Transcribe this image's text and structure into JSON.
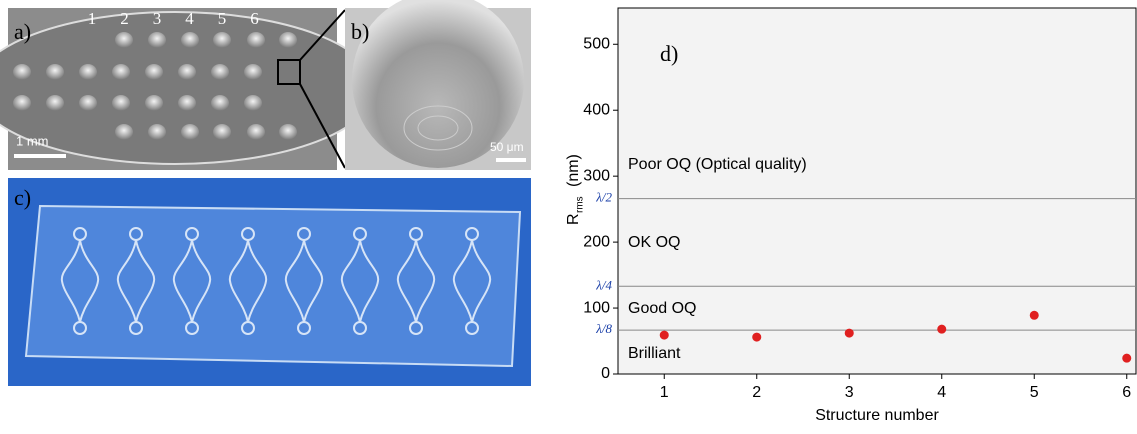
{
  "panels": {
    "a": {
      "label": "a)",
      "columns": [
        "1",
        "2",
        "3",
        "4",
        "5",
        "6"
      ],
      "scale_bar": "1 mm"
    },
    "b": {
      "label": "b)",
      "scale_bar": "50 μm"
    },
    "c": {
      "label": "c)"
    }
  },
  "chart_data": {
    "type": "scatter",
    "title": "d)",
    "xlabel": "Structure number",
    "ylabel": "R",
    "ylabel_sub": "rms",
    "ylabel_unit": "(nm)",
    "x": [
      1,
      2,
      3,
      4,
      5,
      6
    ],
    "values": [
      59,
      56,
      62,
      68,
      89,
      24
    ],
    "color": "#e02020",
    "xlim": [
      0.5,
      6.1
    ],
    "xticks": [
      1,
      2,
      3,
      4,
      5,
      6
    ],
    "ylim": [
      0,
      555
    ],
    "yticks": [
      0,
      100,
      200,
      300,
      400,
      500
    ],
    "reference_lines": [
      {
        "value": 266,
        "label": "λ/2"
      },
      {
        "value": 133,
        "label": "λ/4"
      },
      {
        "value": 66.5,
        "label": "λ/8"
      }
    ],
    "region_labels": [
      "Poor OQ (Optical quality)",
      "OK OQ",
      "Good OQ",
      "Brilliant"
    ]
  }
}
